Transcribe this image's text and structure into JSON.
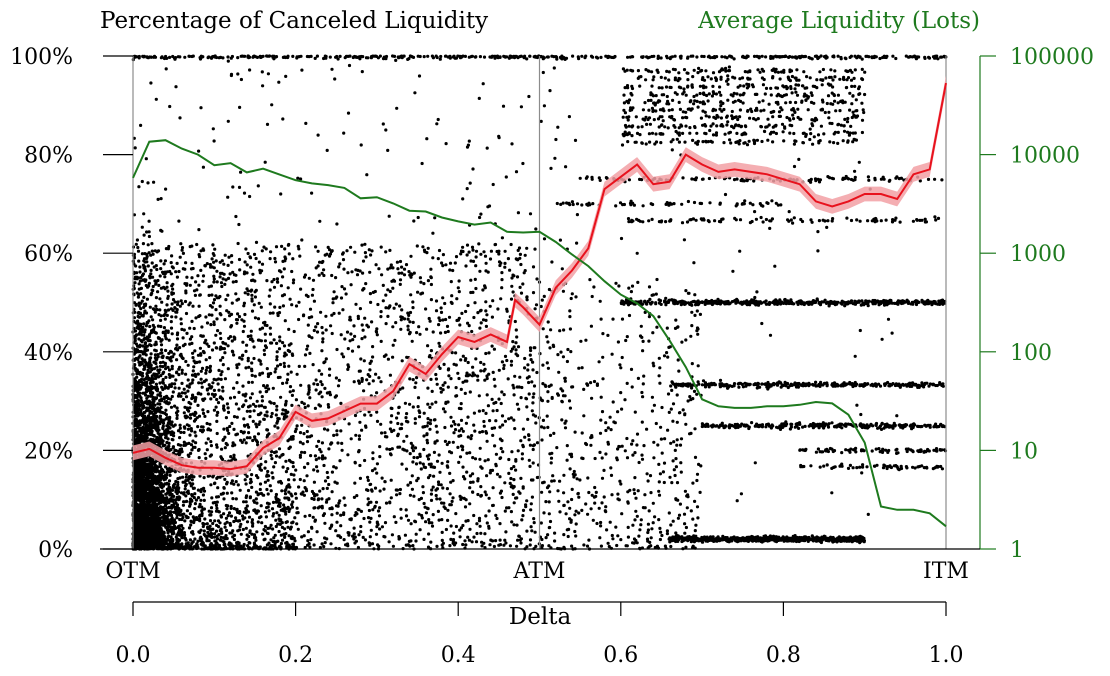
{
  "chart_data": {
    "type": "scatter",
    "left_title": "Percentage of Canceled Liquidity",
    "right_title": "Average Liquidity (Lots)",
    "xlabel": "Delta",
    "xlim": [
      0.0,
      1.0
    ],
    "x_ticks": [
      "0.0",
      "0.2",
      "0.4",
      "0.6",
      "0.8",
      "1.0"
    ],
    "x_tick_values": [
      0.0,
      0.2,
      0.4,
      0.6,
      0.8,
      1.0
    ],
    "moneyness_labels": [
      {
        "label": "OTM",
        "x": 0.0
      },
      {
        "label": "ATM",
        "x": 0.5
      },
      {
        "label": "ITM",
        "x": 1.0
      }
    ],
    "y_left": {
      "lim": [
        0,
        100
      ],
      "ticks": [
        "0%",
        "20%",
        "40%",
        "60%",
        "80%",
        "100%"
      ],
      "tick_values": [
        0,
        20,
        40,
        60,
        80,
        100
      ]
    },
    "y_right": {
      "scale": "log",
      "lim": [
        1,
        100000
      ],
      "ticks": [
        "1",
        "10",
        "100",
        "1000",
        "10000",
        "100000"
      ],
      "tick_values": [
        1,
        10,
        100,
        1000,
        10000,
        100000
      ]
    },
    "series": [
      {
        "axis": "left",
        "kind": "line-with-band",
        "color": "#e8121d",
        "band_color": "#f2a0a4",
        "band_halfwidth": 1.5,
        "points": [
          [
            0.0,
            19.5
          ],
          [
            0.02,
            20.3
          ],
          [
            0.04,
            18.5
          ],
          [
            0.06,
            17.0
          ],
          [
            0.08,
            16.5
          ],
          [
            0.1,
            16.5
          ],
          [
            0.12,
            16.2
          ],
          [
            0.14,
            16.8
          ],
          [
            0.16,
            20.5
          ],
          [
            0.18,
            22.5
          ],
          [
            0.2,
            27.8
          ],
          [
            0.22,
            26.0
          ],
          [
            0.24,
            26.5
          ],
          [
            0.26,
            28.0
          ],
          [
            0.28,
            29.5
          ],
          [
            0.3,
            29.5
          ],
          [
            0.32,
            32.0
          ],
          [
            0.34,
            37.5
          ],
          [
            0.36,
            35.5
          ],
          [
            0.38,
            39.5
          ],
          [
            0.4,
            43.0
          ],
          [
            0.42,
            42.0
          ],
          [
            0.44,
            43.5
          ],
          [
            0.46,
            42.0
          ],
          [
            0.47,
            50.5
          ],
          [
            0.48,
            49.0
          ],
          [
            0.5,
            45.5
          ],
          [
            0.52,
            53.0
          ],
          [
            0.54,
            56.5
          ],
          [
            0.56,
            61.0
          ],
          [
            0.58,
            73.0
          ],
          [
            0.6,
            75.5
          ],
          [
            0.62,
            78.0
          ],
          [
            0.64,
            74.0
          ],
          [
            0.66,
            74.5
          ],
          [
            0.68,
            80.0
          ],
          [
            0.7,
            78.0
          ],
          [
            0.72,
            76.5
          ],
          [
            0.74,
            77.0
          ],
          [
            0.76,
            76.5
          ],
          [
            0.78,
            76.0
          ],
          [
            0.8,
            75.0
          ],
          [
            0.82,
            74.0
          ],
          [
            0.84,
            70.5
          ],
          [
            0.86,
            69.5
          ],
          [
            0.88,
            70.5
          ],
          [
            0.9,
            72.0
          ],
          [
            0.92,
            72.0
          ],
          [
            0.94,
            71.0
          ],
          [
            0.96,
            76.0
          ],
          [
            0.98,
            77.0
          ],
          [
            1.0,
            94.5
          ]
        ]
      },
      {
        "axis": "right",
        "kind": "line",
        "color": "#1e7a1e",
        "points": [
          [
            0.0,
            5800
          ],
          [
            0.02,
            13500
          ],
          [
            0.04,
            14000
          ],
          [
            0.06,
            11500
          ],
          [
            0.08,
            10000
          ],
          [
            0.1,
            7800
          ],
          [
            0.12,
            8200
          ],
          [
            0.14,
            6600
          ],
          [
            0.16,
            7200
          ],
          [
            0.18,
            6300
          ],
          [
            0.2,
            5500
          ],
          [
            0.22,
            5100
          ],
          [
            0.24,
            4900
          ],
          [
            0.26,
            4600
          ],
          [
            0.28,
            3600
          ],
          [
            0.3,
            3700
          ],
          [
            0.32,
            3200
          ],
          [
            0.34,
            2700
          ],
          [
            0.36,
            2650
          ],
          [
            0.38,
            2300
          ],
          [
            0.4,
            2100
          ],
          [
            0.42,
            1950
          ],
          [
            0.44,
            2050
          ],
          [
            0.46,
            1650
          ],
          [
            0.48,
            1620
          ],
          [
            0.5,
            1650
          ],
          [
            0.52,
            1300
          ],
          [
            0.54,
            970
          ],
          [
            0.56,
            740
          ],
          [
            0.58,
            520
          ],
          [
            0.6,
            380
          ],
          [
            0.62,
            310
          ],
          [
            0.64,
            230
          ],
          [
            0.66,
            130
          ],
          [
            0.68,
            70
          ],
          [
            0.7,
            33
          ],
          [
            0.72,
            28
          ],
          [
            0.74,
            27
          ],
          [
            0.76,
            27
          ],
          [
            0.78,
            28
          ],
          [
            0.8,
            28
          ],
          [
            0.82,
            29
          ],
          [
            0.84,
            31
          ],
          [
            0.86,
            30
          ],
          [
            0.88,
            23
          ],
          [
            0.9,
            12
          ],
          [
            0.92,
            2.7
          ],
          [
            0.94,
            2.5
          ],
          [
            0.96,
            2.5
          ],
          [
            0.98,
            2.3
          ],
          [
            1.0,
            1.7
          ]
        ]
      }
    ],
    "scatter": {
      "axis": "left",
      "color": "#000000",
      "note": "dense cloud of individual order observations (canceled fraction vs delta)"
    },
    "grid": false,
    "vertical_reference_lines": [
      0.0,
      0.5,
      1.0
    ]
  }
}
